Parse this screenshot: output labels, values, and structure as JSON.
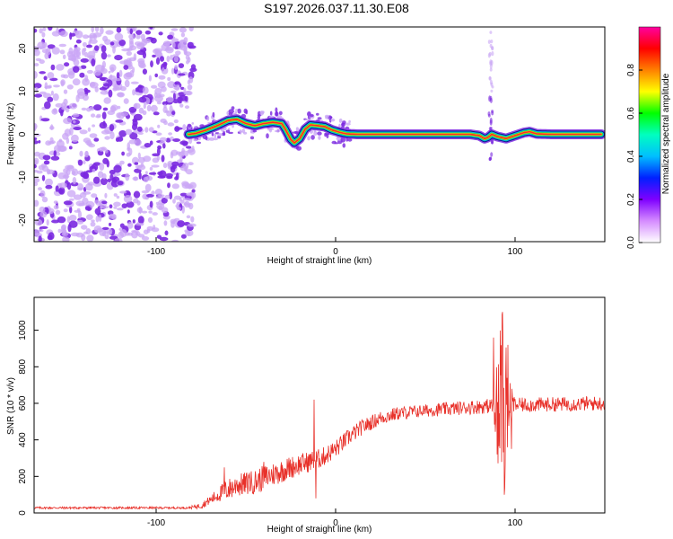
{
  "title": "S197.2026.037.11.30.E08",
  "colors": {
    "snr_line": "#e8312a",
    "ridge_core": "#ff2a2a",
    "ridge_outer": "#0a1a8a",
    "noise": "#7a28e0",
    "noise_light": "#c9a6f5"
  },
  "chart_data": [
    {
      "type": "heatmap",
      "name": "spectrogram",
      "xlabel": "Height of straight line (km)",
      "ylabel": "Frequency (Hz)",
      "xlim": [
        -168,
        150
      ],
      "ylim": [
        -25,
        25
      ],
      "xticks": [
        -100,
        0,
        100
      ],
      "xtick_labels": [
        "-100",
        "0",
        "100"
      ],
      "yticks": [
        -20,
        -10,
        0,
        10,
        20
      ],
      "ytick_labels": [
        "-20",
        "-10",
        "0",
        "10",
        "20"
      ],
      "noise_region_x": [
        -168,
        -82
      ],
      "ridge_x": [
        -82,
        148
      ],
      "ridge_points": [
        [
          -82,
          0.0
        ],
        [
          -78,
          0.2
        ],
        [
          -72,
          1.0
        ],
        [
          -66,
          2.0
        ],
        [
          -60,
          3.2
        ],
        [
          -55,
          3.5
        ],
        [
          -50,
          2.5
        ],
        [
          -45,
          2.0
        ],
        [
          -40,
          2.5
        ],
        [
          -35,
          2.8
        ],
        [
          -30,
          2.5
        ],
        [
          -28,
          1.2
        ],
        [
          -25,
          -1.2
        ],
        [
          -23,
          -2.0
        ],
        [
          -20,
          -1.0
        ],
        [
          -17,
          1.2
        ],
        [
          -14,
          2.2
        ],
        [
          -10,
          2.0
        ],
        [
          -6,
          1.8
        ],
        [
          -2,
          1.0
        ],
        [
          2,
          0.5
        ],
        [
          6,
          0.1
        ],
        [
          12,
          0.0
        ],
        [
          30,
          0.0
        ],
        [
          60,
          0.0
        ],
        [
          75,
          0.0
        ],
        [
          80,
          -0.3
        ],
        [
          83,
          -1.0
        ],
        [
          85,
          -0.7
        ],
        [
          87,
          0.0
        ],
        [
          90,
          -0.5
        ],
        [
          95,
          -1.0
        ],
        [
          100,
          -0.3
        ],
        [
          105,
          0.4
        ],
        [
          108,
          0.6
        ],
        [
          112,
          0.1
        ],
        [
          120,
          0.0
        ],
        [
          135,
          0.0
        ],
        [
          148,
          0.0
        ]
      ],
      "colorbar": {
        "label": "Normalized spectral amplitude",
        "range": [
          0,
          1
        ],
        "ticks": [
          0.0,
          0.2,
          0.4,
          0.6,
          0.8
        ],
        "tick_labels": [
          "0.0",
          "0.2",
          "0.4",
          "0.6",
          "0.8"
        ],
        "colors": [
          "#ffffff",
          "#d58cff",
          "#7f00ff",
          "#0020ff",
          "#00bfff",
          "#00ffc0",
          "#00ff00",
          "#ffff00",
          "#ff8000",
          "#ff0000",
          "#ff00a0"
        ]
      }
    },
    {
      "type": "line",
      "name": "snr",
      "xlabel": "Height of straight line (km)",
      "ylabel": "SNR (10 * v/v)",
      "xlim": [
        -168,
        150
      ],
      "ylim": [
        0,
        1180
      ],
      "xticks": [
        -100,
        0,
        100
      ],
      "xtick_labels": [
        "-100",
        "0",
        "100"
      ],
      "yticks": [
        0,
        200,
        400,
        600,
        800,
        1000
      ],
      "ytick_labels": [
        "0",
        "200",
        "400",
        "600",
        "800",
        "1000"
      ],
      "baseline": [
        [
          -168,
          28
        ],
        [
          -82,
          28
        ],
        [
          -75,
          40
        ],
        [
          -70,
          70
        ],
        [
          -62,
          120
        ],
        [
          -55,
          150
        ],
        [
          -45,
          170
        ],
        [
          -38,
          200
        ],
        [
          -30,
          230
        ],
        [
          -22,
          260
        ],
        [
          -15,
          280
        ],
        [
          -8,
          300
        ],
        [
          0,
          350
        ],
        [
          8,
          420
        ],
        [
          15,
          470
        ],
        [
          25,
          520
        ],
        [
          35,
          545
        ],
        [
          50,
          560
        ],
        [
          70,
          575
        ],
        [
          85,
          585
        ],
        [
          100,
          590
        ],
        [
          125,
          595
        ],
        [
          150,
          600
        ]
      ],
      "noise_envelope": [
        [
          -168,
          6
        ],
        [
          -82,
          6
        ],
        [
          -70,
          25
        ],
        [
          -60,
          60
        ],
        [
          -40,
          70
        ],
        [
          -20,
          60
        ],
        [
          0,
          50
        ],
        [
          20,
          40
        ],
        [
          50,
          35
        ],
        [
          80,
          40
        ],
        [
          100,
          40
        ],
        [
          150,
          40
        ]
      ],
      "spikes": [
        [
          -62,
          250
        ],
        [
          -55,
          180
        ],
        [
          -48,
          220
        ],
        [
          -40,
          280
        ],
        [
          -36,
          200
        ],
        [
          -12,
          620
        ],
        [
          -11,
          80
        ],
        [
          88,
          960
        ],
        [
          90,
          320
        ],
        [
          93,
          1100
        ],
        [
          94,
          100
        ],
        [
          96,
          920
        ],
        [
          98,
          350
        ]
      ]
    }
  ]
}
